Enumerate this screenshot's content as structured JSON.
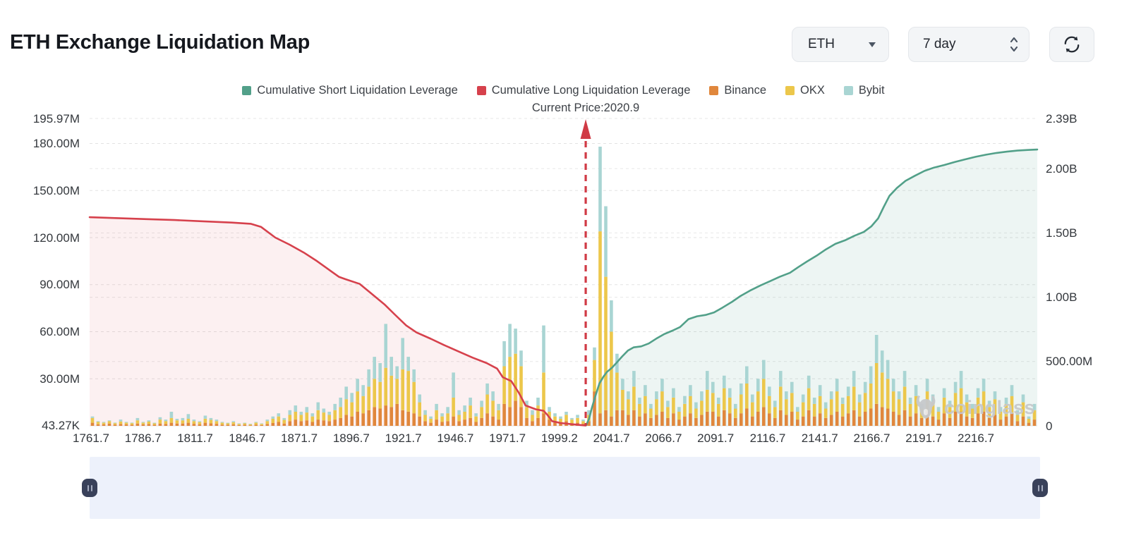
{
  "header": {
    "title": "ETH Exchange Liquidation Map"
  },
  "controls": {
    "symbol": "ETH",
    "period": "7 day"
  },
  "annotation": {
    "current_price_label": "Current Price:2020.9",
    "current_price": 2020.9
  },
  "watermark": {
    "text": "coinglass"
  },
  "legend": {
    "items": [
      {
        "key": "cumulative-short",
        "label": "Cumulative Short Liquidation Leverage",
        "color": "#52a089"
      },
      {
        "key": "cumulative-long",
        "label": "Cumulative Long Liquidation Leverage",
        "color": "#d6414c"
      },
      {
        "key": "binance",
        "label": "Binance",
        "color": "#e0873c"
      },
      {
        "key": "okx",
        "label": "OKX",
        "color": "#ecc74b"
      },
      {
        "key": "bybit",
        "label": "Bybit",
        "color": "#a9d5d3"
      }
    ]
  },
  "chart_data": {
    "type": "combo-stacked-bar-with-cumulative-areas",
    "title": "ETH Exchange Liquidation Map",
    "grid": true,
    "unit": "USD",
    "current_price": 2020.9,
    "current_price_frac": 0.5235,
    "left_axis": {
      "max_value": 195.97,
      "unit": "M",
      "ticks": [
        {
          "label": "195.97M",
          "value": 195.97
        },
        {
          "label": "180.00M",
          "value": 180
        },
        {
          "label": "150.00M",
          "value": 150
        },
        {
          "label": "120.00M",
          "value": 120
        },
        {
          "label": "90.00M",
          "value": 90
        },
        {
          "label": "60.00M",
          "value": 60
        },
        {
          "label": "30.00M",
          "value": 30
        },
        {
          "label": "43.27K",
          "value": 0.04327
        }
      ]
    },
    "right_axis": {
      "max_value": 2390,
      "unit": "M",
      "ticks": [
        {
          "label": "2.39B",
          "value": 2390
        },
        {
          "label": "2.00B",
          "value": 2000
        },
        {
          "label": "1.50B",
          "value": 1500
        },
        {
          "label": "1.00B",
          "value": 1000
        },
        {
          "label": "500.00M",
          "value": 500
        },
        {
          "label": "0",
          "value": 0
        }
      ]
    },
    "x_ticks": [
      "1761.7",
      "1786.7",
      "1811.7",
      "1846.7",
      "1871.7",
      "1896.7",
      "1921.7",
      "1946.7",
      "1971.7",
      "1999.2",
      "2041.7",
      "2066.7",
      "2091.7",
      "2116.7",
      "2141.7",
      "2166.7",
      "2191.7",
      "2216.7"
    ],
    "series": [
      {
        "name": "Cumulative Long Liquidation Leverage",
        "axis": "left",
        "color": "#d6414c",
        "fill": "rgba(214,65,76,0.08)",
        "points": [
          [
            0,
            133
          ],
          [
            0.03,
            132.4
          ],
          [
            0.06,
            131.8
          ],
          [
            0.09,
            131.2
          ],
          [
            0.12,
            130.4
          ],
          [
            0.15,
            129.6
          ],
          [
            0.17,
            128.8
          ],
          [
            0.181,
            126.8
          ],
          [
            0.196,
            120
          ],
          [
            0.211,
            115.5
          ],
          [
            0.226,
            110.5
          ],
          [
            0.24,
            105
          ],
          [
            0.255,
            98.5
          ],
          [
            0.263,
            95
          ],
          [
            0.27,
            93.5
          ],
          [
            0.285,
            90.5
          ],
          [
            0.296,
            85
          ],
          [
            0.311,
            77.5
          ],
          [
            0.322,
            71
          ],
          [
            0.334,
            64
          ],
          [
            0.345,
            59.5
          ],
          [
            0.36,
            55.5
          ],
          [
            0.374,
            51.5
          ],
          [
            0.389,
            47.5
          ],
          [
            0.404,
            43.5
          ],
          [
            0.419,
            40
          ],
          [
            0.43,
            36.5
          ],
          [
            0.436,
            31
          ],
          [
            0.445,
            28.5
          ],
          [
            0.453,
            21
          ],
          [
            0.46,
            13
          ],
          [
            0.471,
            10.5
          ],
          [
            0.479,
            9.6
          ],
          [
            0.483,
            7
          ],
          [
            0.488,
            3
          ],
          [
            0.497,
            1.8
          ],
          [
            0.51,
            1
          ],
          [
            0.5235,
            0.2
          ]
        ]
      },
      {
        "name": "Cumulative Short Liquidation Leverage",
        "axis": "right",
        "color": "#52a089",
        "fill": "rgba(82,160,137,0.10)",
        "points": [
          [
            0.524,
            5
          ],
          [
            0.527,
            55
          ],
          [
            0.53,
            140
          ],
          [
            0.534,
            240
          ],
          [
            0.538,
            330
          ],
          [
            0.542,
            380
          ],
          [
            0.546,
            420
          ],
          [
            0.551,
            450
          ],
          [
            0.556,
            490
          ],
          [
            0.562,
            540
          ],
          [
            0.568,
            585
          ],
          [
            0.574,
            610
          ],
          [
            0.582,
            618
          ],
          [
            0.59,
            640
          ],
          [
            0.598,
            678
          ],
          [
            0.606,
            712
          ],
          [
            0.615,
            740
          ],
          [
            0.623,
            768
          ],
          [
            0.632,
            830
          ],
          [
            0.641,
            852
          ],
          [
            0.65,
            862
          ],
          [
            0.659,
            882
          ],
          [
            0.668,
            920
          ],
          [
            0.678,
            965
          ],
          [
            0.687,
            1010
          ],
          [
            0.697,
            1052
          ],
          [
            0.708,
            1092
          ],
          [
            0.718,
            1125
          ],
          [
            0.728,
            1158
          ],
          [
            0.739,
            1190
          ],
          [
            0.748,
            1235
          ],
          [
            0.757,
            1278
          ],
          [
            0.767,
            1322
          ],
          [
            0.777,
            1372
          ],
          [
            0.787,
            1415
          ],
          [
            0.797,
            1442
          ],
          [
            0.807,
            1478
          ],
          [
            0.817,
            1508
          ],
          [
            0.825,
            1552
          ],
          [
            0.832,
            1612
          ],
          [
            0.838,
            1702
          ],
          [
            0.844,
            1788
          ],
          [
            0.852,
            1850
          ],
          [
            0.861,
            1905
          ],
          [
            0.871,
            1945
          ],
          [
            0.881,
            1982
          ],
          [
            0.891,
            2008
          ],
          [
            0.902,
            2028
          ],
          [
            0.913,
            2052
          ],
          [
            0.924,
            2072
          ],
          [
            0.935,
            2092
          ],
          [
            0.946,
            2108
          ],
          [
            0.957,
            2122
          ],
          [
            0.968,
            2132
          ],
          [
            0.979,
            2140
          ],
          [
            0.99,
            2145
          ],
          [
            1,
            2148
          ]
        ]
      }
    ],
    "bars": {
      "stack_order": [
        "Binance",
        "OKX",
        "Bybit"
      ],
      "colors": {
        "Binance": "#e0873c",
        "OKX": "#ecc74b",
        "Bybit": "#a9d5d3"
      },
      "unit": "M",
      "values": [
        [
          2,
          3,
          1
        ],
        [
          1,
          1.5,
          0.5
        ],
        [
          1,
          1,
          0.5
        ],
        [
          1.5,
          1.5,
          0.5
        ],
        [
          0.8,
          0.9,
          0.3
        ],
        [
          1.2,
          1.6,
          1.2
        ],
        [
          1,
          1,
          0.5
        ],
        [
          0.7,
          1,
          0.3
        ],
        [
          1.5,
          2,
          1.5
        ],
        [
          1,
          1,
          0.5
        ],
        [
          1.2,
          1.5,
          0.8
        ],
        [
          0.7,
          0.9,
          0.4
        ],
        [
          1.5,
          2.5,
          1.5
        ],
        [
          1.2,
          1.8,
          1
        ],
        [
          2,
          3,
          4
        ],
        [
          1.5,
          2,
          1
        ],
        [
          1.5,
          2,
          1.5
        ],
        [
          2,
          2.5,
          3
        ],
        [
          1.3,
          1.7,
          1
        ],
        [
          1,
          1.4,
          0.6
        ],
        [
          2,
          2.5,
          2
        ],
        [
          1.6,
          2.2,
          1.2
        ],
        [
          1.3,
          1.7,
          1
        ],
        [
          0.8,
          1.2,
          0.5
        ],
        [
          0.7,
          0.9,
          0.4
        ],
        [
          1,
          1.3,
          0.7
        ],
        [
          0.5,
          0.7,
          0.3
        ],
        [
          0.7,
          0.9,
          0.4
        ],
        [
          0.4,
          0.6,
          0.2
        ],
        [
          0.8,
          1.2,
          0.5
        ],
        [
          0.5,
          0.7,
          0.3
        ],
        [
          1.2,
          1.8,
          1
        ],
        [
          1.8,
          2.7,
          1.5
        ],
        [
          2.5,
          3.5,
          2
        ],
        [
          1.5,
          2.3,
          1.2
        ],
        [
          3,
          4,
          3
        ],
        [
          4,
          5,
          4
        ],
        [
          3,
          4,
          2
        ],
        [
          3.5,
          5,
          3.5
        ],
        [
          2.5,
          3.5,
          2
        ],
        [
          4,
          6,
          5
        ],
        [
          3.5,
          5,
          2.5
        ],
        [
          3,
          4,
          2
        ],
        [
          4,
          6,
          4
        ],
        [
          5,
          7,
          6
        ],
        [
          7,
          10,
          8
        ],
        [
          6,
          9,
          6
        ],
        [
          9,
          13,
          8
        ],
        [
          8,
          11,
          7
        ],
        [
          10,
          15,
          11
        ],
        [
          12,
          18,
          14
        ],
        [
          11,
          17,
          12
        ],
        [
          13,
          24,
          28
        ],
        [
          12,
          20,
          12
        ],
        [
          14,
          16,
          8
        ],
        [
          10,
          26,
          20
        ],
        [
          9,
          26,
          9
        ],
        [
          8,
          20,
          8
        ],
        [
          6,
          9,
          5
        ],
        [
          3,
          4,
          3
        ],
        [
          2,
          2.5,
          1.5
        ],
        [
          4,
          6,
          4
        ],
        [
          2.5,
          3.5,
          2
        ],
        [
          3,
          5,
          4
        ],
        [
          6,
          12,
          16
        ],
        [
          3,
          4,
          3
        ],
        [
          4,
          5,
          4
        ],
        [
          5,
          8,
          5
        ],
        [
          2.5,
          3.5,
          2
        ],
        [
          5,
          7,
          4
        ],
        [
          8,
          12,
          7
        ],
        [
          6,
          10,
          6
        ],
        [
          4,
          6,
          4
        ],
        [
          14,
          24,
          16
        ],
        [
          12,
          32,
          21
        ],
        [
          16,
          30,
          16
        ],
        [
          12,
          26,
          10
        ],
        [
          5,
          7,
          4
        ],
        [
          3,
          4,
          3
        ],
        [
          5,
          8,
          5
        ],
        [
          8,
          26,
          30
        ],
        [
          4,
          5,
          3
        ],
        [
          2.5,
          3.5,
          2
        ],
        [
          2,
          2.5,
          1.5
        ],
        [
          3,
          4,
          2
        ],
        [
          1.5,
          2.5,
          1
        ],
        [
          2,
          3,
          2
        ],
        [
          1.3,
          1.7,
          1
        ],
        [
          3,
          4,
          3
        ],
        [
          22,
          20,
          8
        ],
        [
          8,
          116,
          54
        ],
        [
          10,
          85,
          45
        ],
        [
          6,
          54,
          20
        ],
        [
          10,
          24,
          12
        ],
        [
          10,
          13,
          7
        ],
        [
          7,
          10,
          5
        ],
        [
          10,
          15,
          10
        ],
        [
          6,
          8,
          4
        ],
        [
          8,
          11,
          7
        ],
        [
          5,
          6,
          3
        ],
        [
          7,
          10,
          5
        ],
        [
          9,
          13,
          8
        ],
        [
          5,
          7,
          4
        ],
        [
          8,
          10,
          6
        ],
        [
          4,
          5,
          3
        ],
        [
          6,
          8,
          5
        ],
        [
          8,
          11,
          7
        ],
        [
          5,
          6,
          4
        ],
        [
          7,
          9,
          6
        ],
        [
          9,
          14,
          12
        ],
        [
          9,
          12,
          7
        ],
        [
          6,
          8,
          4
        ],
        [
          10,
          14,
          8
        ],
        [
          8,
          10,
          6
        ],
        [
          5,
          6,
          3
        ],
        [
          8,
          12,
          7
        ],
        [
          11,
          16,
          11
        ],
        [
          6,
          9,
          5
        ],
        [
          9,
          13,
          8
        ],
        [
          12,
          18,
          12
        ],
        [
          8,
          11,
          6
        ],
        [
          5,
          7,
          4
        ],
        [
          10,
          15,
          10
        ],
        [
          7,
          10,
          5
        ],
        [
          9,
          12,
          7
        ],
        [
          4,
          5,
          3
        ],
        [
          6,
          9,
          5
        ],
        [
          10,
          14,
          8
        ],
        [
          6,
          8,
          4
        ],
        [
          8,
          11,
          7
        ],
        [
          5,
          6,
          4
        ],
        [
          7,
          10,
          5
        ],
        [
          9,
          13,
          8
        ],
        [
          6,
          8,
          4
        ],
        [
          8,
          11,
          6
        ],
        [
          10,
          15,
          10
        ],
        [
          6,
          9,
          5
        ],
        [
          9,
          12,
          7
        ],
        [
          11,
          16,
          11
        ],
        [
          14,
          26,
          18
        ],
        [
          12,
          22,
          14
        ],
        [
          11,
          19,
          12
        ],
        [
          9,
          13,
          8
        ],
        [
          7,
          10,
          5
        ],
        [
          10,
          15,
          10
        ],
        [
          6,
          8,
          4
        ],
        [
          8,
          11,
          7
        ],
        [
          5,
          6,
          3
        ],
        [
          9,
          13,
          8
        ],
        [
          6,
          9,
          5
        ],
        [
          4,
          5,
          3
        ],
        [
          8,
          10,
          6
        ],
        [
          5,
          7,
          4
        ],
        [
          9,
          12,
          7
        ],
        [
          9,
          15,
          11
        ],
        [
          6,
          9,
          5
        ],
        [
          5,
          6,
          3
        ],
        [
          8,
          10,
          6
        ],
        [
          9,
          13,
          8
        ],
        [
          5,
          7,
          4
        ],
        [
          7,
          10,
          5
        ],
        [
          4,
          5,
          3
        ],
        [
          6,
          8,
          4
        ],
        [
          8,
          11,
          7
        ],
        [
          3,
          4,
          3
        ],
        [
          6,
          9,
          5
        ],
        [
          2,
          2.5,
          1.5
        ],
        [
          4,
          6,
          4
        ]
      ]
    }
  }
}
